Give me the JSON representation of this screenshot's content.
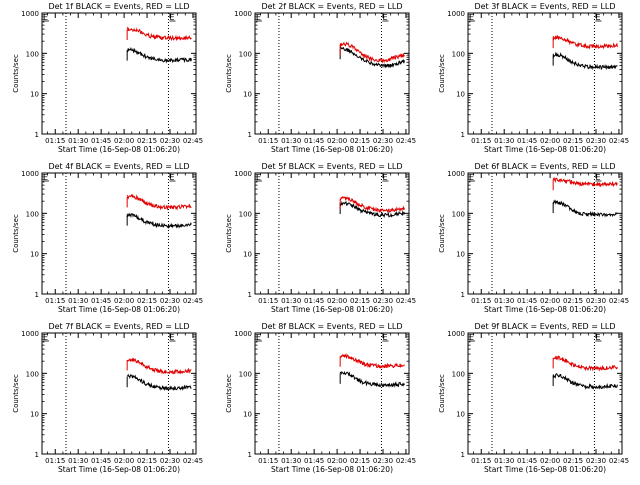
{
  "page": {
    "background": "#ffffff"
  },
  "chart_data": [
    {
      "type": "line",
      "title": "Det 1f BLACK = Events, RED = LLD",
      "xlabel": "Start Time (16-Sep-08 01:06:20)",
      "ylabel": "Counts/sec",
      "x_ticks": [
        "01:15",
        "01:30",
        "01:45",
        "02:00",
        "02:15",
        "02:30",
        "02:45"
      ],
      "y_ticks": [
        "1",
        "10",
        "100",
        "1000"
      ],
      "ylim": [
        1,
        1000
      ],
      "yscale": "log",
      "xlim": [
        "01:06:20",
        "02:47:00"
      ],
      "markers": [
        {
          "time": "01:22",
          "label": ""
        },
        {
          "time": "02:29",
          "label": "E"
        }
      ],
      "flag": "E",
      "flag_time": "01:06",
      "series": [
        {
          "name": "Events",
          "color": "#000000",
          "x": [
            "02:02",
            "02:05",
            "02:08",
            "02:11",
            "02:14",
            "02:17",
            "02:20",
            "02:23",
            "02:26",
            "02:29",
            "02:32",
            "02:35",
            "02:38",
            "02:41",
            "02:44"
          ],
          "values": [
            120,
            122,
            112,
            95,
            84,
            76,
            72,
            70,
            68,
            66,
            66,
            67,
            68,
            68,
            70
          ]
        },
        {
          "name": "LLD",
          "color": "#e00000",
          "x": [
            "02:02",
            "02:05",
            "02:08",
            "02:11",
            "02:14",
            "02:17",
            "02:20",
            "02:23",
            "02:26",
            "02:29",
            "02:32",
            "02:35",
            "02:38",
            "02:41",
            "02:44"
          ],
          "values": [
            390,
            395,
            380,
            340,
            300,
            270,
            255,
            248,
            243,
            240,
            238,
            238,
            240,
            242,
            245
          ]
        }
      ]
    },
    {
      "type": "line",
      "title": "Det 2f BLACK = Events, RED = LLD",
      "xlabel": "Start Time (16-Sep-08 01:06:20)",
      "ylabel": "Counts/sec",
      "x_ticks": [
        "01:15",
        "01:30",
        "01:45",
        "02:00",
        "02:15",
        "02:30",
        "02:45"
      ],
      "y_ticks": [
        "1",
        "10",
        "100",
        "1000"
      ],
      "ylim": [
        1,
        1000
      ],
      "yscale": "log",
      "xlim": [
        "01:06:20",
        "02:47:00"
      ],
      "markers": [
        {
          "time": "01:22",
          "label": ""
        },
        {
          "time": "02:29",
          "label": "E"
        }
      ],
      "flag": "E",
      "flag_time": "01:06",
      "series": [
        {
          "name": "Events",
          "color": "#000000",
          "x": [
            "02:02",
            "02:05",
            "02:08",
            "02:11",
            "02:14",
            "02:17",
            "02:20",
            "02:23",
            "02:26",
            "02:29",
            "02:32",
            "02:35",
            "02:38",
            "02:41",
            "02:44"
          ],
          "values": [
            130,
            128,
            118,
            98,
            82,
            70,
            62,
            56,
            52,
            50,
            50,
            52,
            55,
            58,
            62
          ]
        },
        {
          "name": "LLD",
          "color": "#e00000",
          "x": [
            "02:02",
            "02:05",
            "02:08",
            "02:11",
            "02:14",
            "02:17",
            "02:20",
            "02:23",
            "02:26",
            "02:29",
            "02:32",
            "02:35",
            "02:38",
            "02:41",
            "02:44"
          ],
          "values": [
            165,
            170,
            160,
            135,
            110,
            92,
            80,
            72,
            68,
            66,
            68,
            72,
            78,
            85,
            92
          ]
        }
      ]
    },
    {
      "type": "line",
      "title": "Det 3f BLACK = Events, RED = LLD",
      "xlabel": "Start Time (16-Sep-08 01:06:20)",
      "ylabel": "Counts/sec",
      "x_ticks": [
        "01:15",
        "01:30",
        "01:45",
        "02:00",
        "02:15",
        "02:30",
        "02:45"
      ],
      "y_ticks": [
        "1",
        "10",
        "100",
        "1000"
      ],
      "ylim": [
        1,
        1000
      ],
      "yscale": "log",
      "xlim": [
        "01:06:20",
        "02:47:00"
      ],
      "markers": [
        {
          "time": "01:22",
          "label": ""
        },
        {
          "time": "02:29",
          "label": "E"
        }
      ],
      "flag": "E",
      "flag_time": "01:06",
      "series": [
        {
          "name": "Events",
          "color": "#000000",
          "x": [
            "02:02",
            "02:05",
            "02:08",
            "02:11",
            "02:14",
            "02:17",
            "02:20",
            "02:23",
            "02:26",
            "02:29",
            "02:32",
            "02:35",
            "02:38",
            "02:41",
            "02:44"
          ],
          "values": [
            90,
            92,
            86,
            72,
            62,
            55,
            50,
            48,
            46,
            45,
            45,
            45,
            46,
            46,
            47
          ]
        },
        {
          "name": "LLD",
          "color": "#e00000",
          "x": [
            "02:02",
            "02:05",
            "02:08",
            "02:11",
            "02:14",
            "02:17",
            "02:20",
            "02:23",
            "02:26",
            "02:29",
            "02:32",
            "02:35",
            "02:38",
            "02:41",
            "02:44"
          ],
          "values": [
            245,
            250,
            238,
            210,
            185,
            168,
            158,
            152,
            150,
            148,
            148,
            150,
            152,
            155,
            158
          ]
        }
      ]
    },
    {
      "type": "line",
      "title": "Det 4f BLACK = Events, RED = LLD",
      "xlabel": "Start Time (16-Sep-08 01:06:20)",
      "ylabel": "Counts/sec",
      "x_ticks": [
        "01:15",
        "01:30",
        "01:45",
        "02:00",
        "02:15",
        "02:30",
        "02:45"
      ],
      "y_ticks": [
        "1",
        "10",
        "100",
        "1000"
      ],
      "ylim": [
        1,
        1000
      ],
      "yscale": "log",
      "xlim": [
        "01:06:20",
        "02:47:00"
      ],
      "markers": [
        {
          "time": "01:22",
          "label": ""
        },
        {
          "time": "02:29",
          "label": "E"
        }
      ],
      "flag": "E",
      "flag_time": "01:06",
      "series": [
        {
          "name": "Events",
          "color": "#000000",
          "x": [
            "02:02",
            "02:05",
            "02:08",
            "02:11",
            "02:14",
            "02:17",
            "02:20",
            "02:23",
            "02:26",
            "02:29",
            "02:32",
            "02:35",
            "02:38",
            "02:41",
            "02:44"
          ],
          "values": [
            90,
            92,
            85,
            72,
            62,
            56,
            52,
            50,
            49,
            48,
            48,
            49,
            50,
            51,
            52
          ]
        },
        {
          "name": "LLD",
          "color": "#e00000",
          "x": [
            "02:02",
            "02:05",
            "02:08",
            "02:11",
            "02:14",
            "02:17",
            "02:20",
            "02:23",
            "02:26",
            "02:29",
            "02:32",
            "02:35",
            "02:38",
            "02:41",
            "02:44"
          ],
          "values": [
            255,
            262,
            248,
            215,
            185,
            165,
            152,
            146,
            142,
            140,
            140,
            142,
            145,
            148,
            152
          ]
        }
      ]
    },
    {
      "type": "line",
      "title": "Det 5f BLACK = Events, RED = LLD",
      "xlabel": "Start Time (16-Sep-08 01:06:20)",
      "ylabel": "Counts/sec",
      "x_ticks": [
        "01:15",
        "01:30",
        "01:45",
        "02:00",
        "02:15",
        "02:30",
        "02:45"
      ],
      "y_ticks": [
        "1",
        "10",
        "100",
        "1000"
      ],
      "ylim": [
        1,
        1000
      ],
      "yscale": "log",
      "xlim": [
        "01:06:20",
        "02:47:00"
      ],
      "markers": [
        {
          "time": "01:22",
          "label": ""
        },
        {
          "time": "02:29",
          "label": "E"
        }
      ],
      "flag": "E",
      "flag_time": "01:06",
      "series": [
        {
          "name": "Events",
          "color": "#000000",
          "x": [
            "02:02",
            "02:05",
            "02:08",
            "02:11",
            "02:14",
            "02:17",
            "02:20",
            "02:23",
            "02:26",
            "02:29",
            "02:32",
            "02:35",
            "02:38",
            "02:41",
            "02:44"
          ],
          "values": [
            175,
            178,
            168,
            148,
            128,
            112,
            102,
            96,
            92,
            90,
            90,
            92,
            95,
            98,
            100
          ]
        },
        {
          "name": "LLD",
          "color": "#e00000",
          "x": [
            "02:02",
            "02:05",
            "02:08",
            "02:11",
            "02:14",
            "02:17",
            "02:20",
            "02:23",
            "02:26",
            "02:29",
            "02:32",
            "02:35",
            "02:38",
            "02:41",
            "02:44"
          ],
          "values": [
            230,
            235,
            222,
            196,
            170,
            150,
            136,
            128,
            122,
            118,
            118,
            120,
            124,
            128,
            132
          ]
        }
      ]
    },
    {
      "type": "line",
      "title": "Det 6f BLACK = Events, RED = LLD",
      "xlabel": "Start Time (16-Sep-08 01:06:20)",
      "ylabel": "Counts/sec",
      "x_ticks": [
        "01:15",
        "01:30",
        "01:45",
        "02:00",
        "02:15",
        "02:30",
        "02:45"
      ],
      "y_ticks": [
        "1",
        "10",
        "100",
        "1000"
      ],
      "ylim": [
        1,
        1000
      ],
      "yscale": "log",
      "xlim": [
        "01:06:20",
        "02:47:00"
      ],
      "markers": [
        {
          "time": "01:22",
          "label": ""
        },
        {
          "time": "02:29",
          "label": "E"
        }
      ],
      "flag": "E",
      "flag_time": "01:06",
      "series": [
        {
          "name": "Events",
          "color": "#000000",
          "x": [
            "02:02",
            "02:05",
            "02:08",
            "02:11",
            "02:14",
            "02:17",
            "02:20",
            "02:23",
            "02:26",
            "02:29",
            "02:32",
            "02:35",
            "02:38",
            "02:41",
            "02:44"
          ],
          "values": [
            185,
            188,
            175,
            148,
            124,
            108,
            100,
            96,
            94,
            93,
            93,
            94,
            95,
            96,
            97
          ]
        },
        {
          "name": "LLD",
          "color": "#e00000",
          "x": [
            "02:02",
            "02:05",
            "02:08",
            "02:11",
            "02:14",
            "02:17",
            "02:20",
            "02:23",
            "02:26",
            "02:29",
            "02:32",
            "02:35",
            "02:38",
            "02:41",
            "02:44"
          ],
          "values": [
            680,
            685,
            672,
            640,
            600,
            570,
            548,
            535,
            525,
            520,
            518,
            518,
            520,
            522,
            525
          ]
        }
      ]
    },
    {
      "type": "line",
      "title": "Det 7f BLACK = Events, RED = LLD",
      "xlabel": "Start Time (16-Sep-08 01:06:20)",
      "ylabel": "Counts/sec",
      "x_ticks": [
        "01:15",
        "01:30",
        "01:45",
        "02:00",
        "02:15",
        "02:30",
        "02:45"
      ],
      "y_ticks": [
        "1",
        "10",
        "100",
        "1000"
      ],
      "ylim": [
        1,
        1000
      ],
      "yscale": "log",
      "xlim": [
        "01:06:20",
        "02:47:00"
      ],
      "markers": [
        {
          "time": "01:22",
          "label": ""
        },
        {
          "time": "02:29",
          "label": "E"
        }
      ],
      "flag": "E",
      "flag_time": "01:06",
      "series": [
        {
          "name": "Events",
          "color": "#000000",
          "x": [
            "02:02",
            "02:05",
            "02:08",
            "02:11",
            "02:14",
            "02:17",
            "02:20",
            "02:23",
            "02:26",
            "02:29",
            "02:32",
            "02:35",
            "02:38",
            "02:41",
            "02:44"
          ],
          "values": [
            82,
            84,
            78,
            66,
            56,
            50,
            46,
            44,
            43,
            42,
            42,
            43,
            44,
            45,
            46
          ]
        },
        {
          "name": "LLD",
          "color": "#e00000",
          "x": [
            "02:02",
            "02:05",
            "02:08",
            "02:11",
            "02:14",
            "02:17",
            "02:20",
            "02:23",
            "02:26",
            "02:29",
            "02:32",
            "02:35",
            "02:38",
            "02:41",
            "02:44"
          ],
          "values": [
            215,
            220,
            205,
            175,
            150,
            132,
            120,
            114,
            110,
            108,
            108,
            110,
            112,
            115,
            118
          ]
        }
      ]
    },
    {
      "type": "line",
      "title": "Det 8f BLACK = Events, RED = LLD",
      "xlabel": "Start Time (16-Sep-08 01:06:20)",
      "ylabel": "Counts/sec",
      "x_ticks": [
        "01:15",
        "01:30",
        "01:45",
        "02:00",
        "02:15",
        "02:30",
        "02:45"
      ],
      "y_ticks": [
        "1",
        "10",
        "100",
        "1000"
      ],
      "ylim": [
        1,
        1000
      ],
      "yscale": "log",
      "xlim": [
        "01:06:20",
        "02:47:00"
      ],
      "markers": [
        {
          "time": "01:22",
          "label": ""
        },
        {
          "time": "02:29",
          "label": "E"
        }
      ],
      "flag": "E",
      "flag_time": "01:06",
      "series": [
        {
          "name": "Events",
          "color": "#000000",
          "x": [
            "02:02",
            "02:05",
            "02:08",
            "02:11",
            "02:14",
            "02:17",
            "02:20",
            "02:23",
            "02:26",
            "02:29",
            "02:32",
            "02:35",
            "02:38",
            "02:41",
            "02:44"
          ],
          "values": [
            100,
            102,
            95,
            80,
            68,
            60,
            56,
            54,
            52,
            51,
            51,
            52,
            53,
            54,
            56
          ]
        },
        {
          "name": "LLD",
          "color": "#e00000",
          "x": [
            "02:02",
            "02:05",
            "02:08",
            "02:11",
            "02:14",
            "02:17",
            "02:20",
            "02:23",
            "02:26",
            "02:29",
            "02:32",
            "02:35",
            "02:38",
            "02:41",
            "02:44"
          ],
          "values": [
            265,
            272,
            258,
            225,
            195,
            175,
            162,
            156,
            152,
            150,
            150,
            152,
            155,
            158,
            160
          ]
        }
      ]
    },
    {
      "type": "line",
      "title": "Det 9f BLACK = Events, RED = LLD",
      "xlabel": "Start Time (16-Sep-08 01:06:20)",
      "ylabel": "Counts/sec",
      "x_ticks": [
        "01:15",
        "01:30",
        "01:45",
        "02:00",
        "02:15",
        "02:30",
        "02:45"
      ],
      "y_ticks": [
        "1",
        "10",
        "100",
        "1000"
      ],
      "ylim": [
        1,
        1000
      ],
      "yscale": "log",
      "xlim": [
        "01:06:20",
        "02:47:00"
      ],
      "markers": [
        {
          "time": "01:22",
          "label": ""
        },
        {
          "time": "02:29",
          "label": "E"
        }
      ],
      "flag": "E",
      "flag_time": "01:06",
      "series": [
        {
          "name": "Events",
          "color": "#000000",
          "x": [
            "02:02",
            "02:05",
            "02:08",
            "02:11",
            "02:14",
            "02:17",
            "02:20",
            "02:23",
            "02:26",
            "02:29",
            "02:32",
            "02:35",
            "02:38",
            "02:41",
            "02:44"
          ],
          "values": [
            88,
            90,
            83,
            70,
            60,
            54,
            50,
            48,
            47,
            46,
            46,
            47,
            48,
            49,
            50
          ]
        },
        {
          "name": "LLD",
          "color": "#e00000",
          "x": [
            "02:02",
            "02:05",
            "02:08",
            "02:11",
            "02:14",
            "02:17",
            "02:20",
            "02:23",
            "02:26",
            "02:29",
            "02:32",
            "02:35",
            "02:38",
            "02:41",
            "02:44"
          ],
          "values": [
            240,
            246,
            232,
            200,
            172,
            154,
            143,
            137,
            134,
            132,
            132,
            134,
            136,
            139,
            142
          ]
        }
      ]
    }
  ]
}
